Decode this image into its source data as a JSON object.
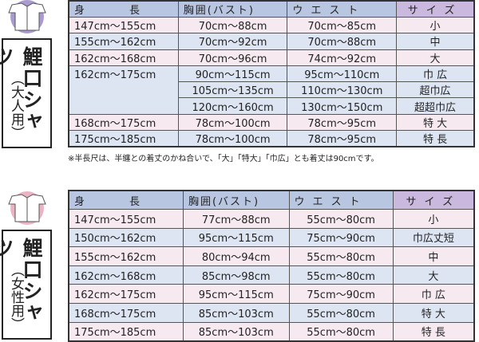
{
  "colors": {
    "header": "#b8c6e2",
    "size_header": "#cbb8de",
    "row_pink": "#f6eaf0",
    "row_blue": "#dde5f3",
    "adult_icon": "#a99ad0",
    "women_icon": "#eab4c4"
  },
  "headers": [
    "身　　長",
    "胸囲(バスト)",
    "ウエスト",
    "サイズ"
  ],
  "adult": {
    "title": "鯉口シャツ",
    "subtitle": "（大人用）",
    "icon": "shirt-icon",
    "rows": [
      [
        "147cm～155cm",
        "70cm～88cm",
        "70cm～85cm",
        "小"
      ],
      [
        "155cm～162cm",
        "70cm～92cm",
        "70cm～88cm",
        "中"
      ],
      [
        "162cm～168cm",
        "70cm～96cm",
        "74cm～92cm",
        "大"
      ],
      [
        "162cm～175cm",
        "90cm～115cm",
        "95cm～110cm",
        "巾 広"
      ],
      [
        "",
        "105cm～135cm",
        "110cm～130cm",
        "超巾広"
      ],
      [
        "",
        "120cm～160cm",
        "130cm～150cm",
        "超超巾広"
      ],
      [
        "168cm～175cm",
        "78cm～100cm",
        "78cm～95cm",
        "特 大"
      ],
      [
        "175cm～185cm",
        "78cm～100cm",
        "78cm～95cm",
        "特 長"
      ]
    ],
    "note": "※半長尺は、半纏との着丈のかね合いで、「大」「特大」「巾広」とも着丈は90cmです。"
  },
  "women": {
    "title": "鯉口シャツ",
    "subtitle": "（女性用）",
    "icon": "shirt-icon",
    "rows": [
      [
        "147cm～155cm",
        "77cm～88cm",
        "55cm～80cm",
        "小"
      ],
      [
        "150cm～162cm",
        "95cm～115cm",
        "75cm～90cm",
        "巾広丈短"
      ],
      [
        "155cm～162cm",
        "80cm～94cm",
        "55cm～80cm",
        "中"
      ],
      [
        "162cm～168cm",
        "85cm～98cm",
        "55cm～80cm",
        "大"
      ],
      [
        "162cm～175cm",
        "95cm～115cm",
        "75cm～90cm",
        "巾 広"
      ],
      [
        "168cm～175cm",
        "85cm～103cm",
        "55cm～80cm",
        "特 大"
      ],
      [
        "175cm～185cm",
        "85cm～103cm",
        "55cm～80cm",
        "特 長"
      ]
    ]
  }
}
